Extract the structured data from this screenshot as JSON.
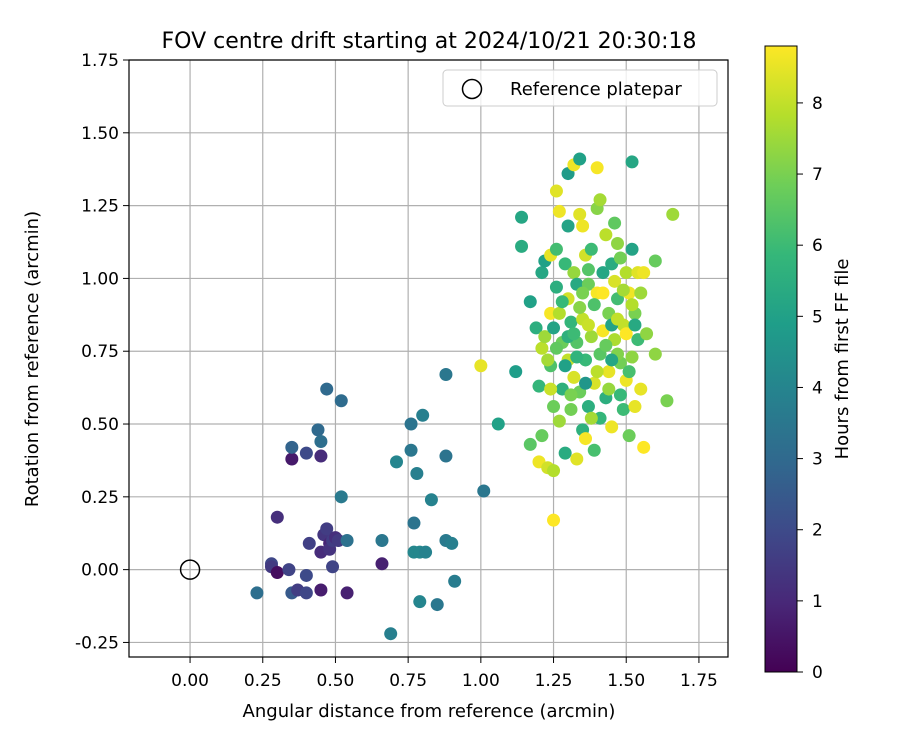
{
  "chart_data": {
    "type": "scatter",
    "title": "FOV centre drift starting at 2024/10/21 20:30:18",
    "xlabel": "Angular distance from reference (arcmin)",
    "ylabel": "Rotation from reference (arcmin)",
    "xlim": [
      -0.21,
      1.85
    ],
    "ylim": [
      -0.3,
      1.75
    ],
    "xticks": [
      "0.00",
      "0.25",
      "0.50",
      "0.75",
      "1.00",
      "1.25",
      "1.50",
      "1.75"
    ],
    "yticks": [
      "-0.25",
      "0.00",
      "0.25",
      "0.50",
      "0.75",
      "1.00",
      "1.25",
      "1.50",
      "1.75"
    ],
    "xtick_values": [
      0,
      0.25,
      0.5,
      0.75,
      1.0,
      1.25,
      1.5,
      1.75
    ],
    "ytick_values": [
      -0.25,
      0,
      0.25,
      0.5,
      0.75,
      1.0,
      1.25,
      1.5,
      1.75
    ],
    "grid": true,
    "legend": {
      "position": "top-right",
      "entries": [
        "Reference platepar"
      ]
    },
    "reference_point": {
      "x": 0.0,
      "y": 0.0,
      "label": "Reference platepar"
    },
    "colorbar": {
      "label": "Hours from first FF file",
      "range": [
        0,
        8.8
      ],
      "ticks": [
        "0",
        "1",
        "2",
        "3",
        "4",
        "5",
        "6",
        "7",
        "8"
      ],
      "colormap": "viridis"
    },
    "points": [
      {
        "x": 0.23,
        "y": -0.08,
        "c": 3.2
      },
      {
        "x": 0.28,
        "y": 0.02,
        "c": 1.9
      },
      {
        "x": 0.28,
        "y": 0.01,
        "c": 1.5
      },
      {
        "x": 0.3,
        "y": 0.18,
        "c": 1.2
      },
      {
        "x": 0.3,
        "y": -0.01,
        "c": 0.3
      },
      {
        "x": 0.34,
        "y": 0.0,
        "c": 1.8
      },
      {
        "x": 0.35,
        "y": -0.08,
        "c": 2.5
      },
      {
        "x": 0.37,
        "y": -0.07,
        "c": 1.6
      },
      {
        "x": 0.4,
        "y": -0.08,
        "c": 1.9
      },
      {
        "x": 0.4,
        "y": -0.02,
        "c": 2.0
      },
      {
        "x": 0.41,
        "y": 0.09,
        "c": 1.7
      },
      {
        "x": 0.45,
        "y": -0.07,
        "c": 0.7
      },
      {
        "x": 0.45,
        "y": 0.06,
        "c": 1.1
      },
      {
        "x": 0.46,
        "y": 0.12,
        "c": 1.4
      },
      {
        "x": 0.47,
        "y": 0.14,
        "c": 1.6
      },
      {
        "x": 0.48,
        "y": 0.09,
        "c": 0.9
      },
      {
        "x": 0.48,
        "y": 0.07,
        "c": 1.3
      },
      {
        "x": 0.49,
        "y": 0.1,
        "c": 1.6
      },
      {
        "x": 0.49,
        "y": 0.01,
        "c": 1.8
      },
      {
        "x": 0.5,
        "y": 0.11,
        "c": 1.2
      },
      {
        "x": 0.51,
        "y": 0.1,
        "c": 1.5
      },
      {
        "x": 0.54,
        "y": -0.08,
        "c": 0.8
      },
      {
        "x": 0.35,
        "y": 0.38,
        "c": 0.6
      },
      {
        "x": 0.35,
        "y": 0.42,
        "c": 2.8
      },
      {
        "x": 0.4,
        "y": 0.4,
        "c": 2.0
      },
      {
        "x": 0.44,
        "y": 0.48,
        "c": 3.0
      },
      {
        "x": 0.45,
        "y": 0.44,
        "c": 3.2
      },
      {
        "x": 0.45,
        "y": 0.39,
        "c": 1.1
      },
      {
        "x": 0.47,
        "y": 0.62,
        "c": 3.0
      },
      {
        "x": 0.52,
        "y": 0.58,
        "c": 3.1
      },
      {
        "x": 0.52,
        "y": 0.25,
        "c": 3.6
      },
      {
        "x": 0.54,
        "y": 0.1,
        "c": 3.3
      },
      {
        "x": 0.66,
        "y": 0.02,
        "c": 0.8
      },
      {
        "x": 0.66,
        "y": 0.1,
        "c": 3.5
      },
      {
        "x": 0.69,
        "y": -0.22,
        "c": 3.8
      },
      {
        "x": 0.71,
        "y": 0.37,
        "c": 4.0
      },
      {
        "x": 0.76,
        "y": 0.41,
        "c": 3.5
      },
      {
        "x": 0.76,
        "y": 0.5,
        "c": 3.4
      },
      {
        "x": 0.77,
        "y": 0.16,
        "c": 3.4
      },
      {
        "x": 0.77,
        "y": 0.06,
        "c": 4.1
      },
      {
        "x": 0.78,
        "y": 0.33,
        "c": 3.8
      },
      {
        "x": 0.79,
        "y": 0.06,
        "c": 4.1
      },
      {
        "x": 0.79,
        "y": -0.11,
        "c": 4.0
      },
      {
        "x": 0.8,
        "y": 0.53,
        "c": 3.8
      },
      {
        "x": 0.81,
        "y": 0.06,
        "c": 3.9
      },
      {
        "x": 0.83,
        "y": 0.24,
        "c": 3.9
      },
      {
        "x": 0.85,
        "y": -0.12,
        "c": 3.5
      },
      {
        "x": 0.88,
        "y": 0.67,
        "c": 3.5
      },
      {
        "x": 0.88,
        "y": 0.39,
        "c": 3.4
      },
      {
        "x": 0.88,
        "y": 0.1,
        "c": 3.6
      },
      {
        "x": 0.9,
        "y": 0.09,
        "c": 3.8
      },
      {
        "x": 0.91,
        "y": -0.04,
        "c": 3.7
      },
      {
        "x": 1.0,
        "y": 0.7,
        "c": 8.5
      },
      {
        "x": 1.01,
        "y": 0.27,
        "c": 3.5
      },
      {
        "x": 1.06,
        "y": 0.5,
        "c": 5.0
      },
      {
        "x": 1.12,
        "y": 0.68,
        "c": 4.9
      },
      {
        "x": 1.14,
        "y": 1.21,
        "c": 5.2
      },
      {
        "x": 1.14,
        "y": 1.11,
        "c": 5.4
      },
      {
        "x": 1.17,
        "y": 0.92,
        "c": 5.0
      },
      {
        "x": 1.17,
        "y": 0.43,
        "c": 6.5
      },
      {
        "x": 1.19,
        "y": 0.83,
        "c": 5.5
      },
      {
        "x": 1.2,
        "y": 0.63,
        "c": 5.8
      },
      {
        "x": 1.2,
        "y": 0.37,
        "c": 8.6
      },
      {
        "x": 1.21,
        "y": 1.02,
        "c": 5.2
      },
      {
        "x": 1.21,
        "y": 0.76,
        "c": 7.9
      },
      {
        "x": 1.21,
        "y": 0.46,
        "c": 6.7
      },
      {
        "x": 1.22,
        "y": 1.06,
        "c": 5.0
      },
      {
        "x": 1.22,
        "y": 0.8,
        "c": 7.5
      },
      {
        "x": 1.23,
        "y": 0.35,
        "c": 8.2
      },
      {
        "x": 1.24,
        "y": 1.08,
        "c": 8.5
      },
      {
        "x": 1.24,
        "y": 0.88,
        "c": 8.7
      },
      {
        "x": 1.24,
        "y": 0.7,
        "c": 6.3
      },
      {
        "x": 1.25,
        "y": 0.17,
        "c": 8.8
      },
      {
        "x": 1.25,
        "y": 0.56,
        "c": 6.8
      },
      {
        "x": 1.25,
        "y": 0.34,
        "c": 7.8
      },
      {
        "x": 1.26,
        "y": 1.3,
        "c": 8.4
      },
      {
        "x": 1.26,
        "y": 1.1,
        "c": 6.1
      },
      {
        "x": 1.26,
        "y": 0.97,
        "c": 5.5
      },
      {
        "x": 1.27,
        "y": 1.23,
        "c": 8.6
      },
      {
        "x": 1.27,
        "y": 0.51,
        "c": 7.5
      },
      {
        "x": 1.28,
        "y": 0.78,
        "c": 6.8
      },
      {
        "x": 1.28,
        "y": 0.62,
        "c": 5.6
      },
      {
        "x": 1.29,
        "y": 1.05,
        "c": 5.9
      },
      {
        "x": 1.29,
        "y": 0.4,
        "c": 5.4
      },
      {
        "x": 1.3,
        "y": 1.36,
        "c": 4.8
      },
      {
        "x": 1.3,
        "y": 1.18,
        "c": 5.1
      },
      {
        "x": 1.3,
        "y": 0.93,
        "c": 8.2
      },
      {
        "x": 1.3,
        "y": 0.72,
        "c": 8.0
      },
      {
        "x": 1.31,
        "y": 0.85,
        "c": 5.8
      },
      {
        "x": 1.31,
        "y": 0.55,
        "c": 6.9
      },
      {
        "x": 1.32,
        "y": 1.39,
        "c": 8.6
      },
      {
        "x": 1.32,
        "y": 1.02,
        "c": 7.4
      },
      {
        "x": 1.32,
        "y": 0.66,
        "c": 8.3
      },
      {
        "x": 1.33,
        "y": 0.38,
        "c": 8.4
      },
      {
        "x": 1.33,
        "y": 0.98,
        "c": 5.3
      },
      {
        "x": 1.33,
        "y": 0.78,
        "c": 6.4
      },
      {
        "x": 1.34,
        "y": 1.41,
        "c": 5.0
      },
      {
        "x": 1.34,
        "y": 1.22,
        "c": 8.4
      },
      {
        "x": 1.34,
        "y": 0.61,
        "c": 6.8
      },
      {
        "x": 1.35,
        "y": 1.18,
        "c": 8.6
      },
      {
        "x": 1.35,
        "y": 0.48,
        "c": 5.6
      },
      {
        "x": 1.35,
        "y": 0.86,
        "c": 8.0
      },
      {
        "x": 1.36,
        "y": 1.08,
        "c": 8.2
      },
      {
        "x": 1.36,
        "y": 0.72,
        "c": 5.9
      },
      {
        "x": 1.36,
        "y": 0.45,
        "c": 8.7
      },
      {
        "x": 1.37,
        "y": 0.98,
        "c": 6.8
      },
      {
        "x": 1.37,
        "y": 0.56,
        "c": 5.5
      },
      {
        "x": 1.38,
        "y": 1.1,
        "c": 6.0
      },
      {
        "x": 1.38,
        "y": 0.8,
        "c": 7.5
      },
      {
        "x": 1.39,
        "y": 0.64,
        "c": 8.3
      },
      {
        "x": 1.39,
        "y": 0.41,
        "c": 6.2
      },
      {
        "x": 1.4,
        "y": 1.38,
        "c": 8.7
      },
      {
        "x": 1.4,
        "y": 1.24,
        "c": 7.2
      },
      {
        "x": 1.4,
        "y": 0.95,
        "c": 8.7
      },
      {
        "x": 1.41,
        "y": 1.27,
        "c": 7.6
      },
      {
        "x": 1.41,
        "y": 0.74,
        "c": 6.5
      },
      {
        "x": 1.41,
        "y": 0.52,
        "c": 5.8
      },
      {
        "x": 1.42,
        "y": 0.82,
        "c": 8.7
      },
      {
        "x": 1.42,
        "y": 1.02,
        "c": 5.2
      },
      {
        "x": 1.43,
        "y": 0.59,
        "c": 5.5
      },
      {
        "x": 1.44,
        "y": 0.88,
        "c": 7.0
      },
      {
        "x": 1.44,
        "y": 0.68,
        "c": 8.5
      },
      {
        "x": 1.45,
        "y": 1.05,
        "c": 5.4
      },
      {
        "x": 1.45,
        "y": 0.49,
        "c": 8.6
      },
      {
        "x": 1.46,
        "y": 1.19,
        "c": 6.6
      },
      {
        "x": 1.46,
        "y": 0.79,
        "c": 7.7
      },
      {
        "x": 1.47,
        "y": 1.12,
        "c": 7.3
      },
      {
        "x": 1.47,
        "y": 0.93,
        "c": 6.1
      },
      {
        "x": 1.48,
        "y": 0.71,
        "c": 6.9
      },
      {
        "x": 1.49,
        "y": 0.84,
        "c": 8.0
      },
      {
        "x": 1.49,
        "y": 0.55,
        "c": 6.0
      },
      {
        "x": 1.5,
        "y": 1.02,
        "c": 7.8
      },
      {
        "x": 1.5,
        "y": 0.65,
        "c": 8.6
      },
      {
        "x": 1.51,
        "y": 0.95,
        "c": 8.6
      },
      {
        "x": 1.51,
        "y": 0.46,
        "c": 6.8
      },
      {
        "x": 1.52,
        "y": 1.4,
        "c": 5.2
      },
      {
        "x": 1.52,
        "y": 1.1,
        "c": 5.1
      },
      {
        "x": 1.52,
        "y": 0.73,
        "c": 7.3
      },
      {
        "x": 1.53,
        "y": 0.88,
        "c": 7.0
      },
      {
        "x": 1.53,
        "y": 0.56,
        "c": 8.5
      },
      {
        "x": 1.54,
        "y": 1.02,
        "c": 8.4
      },
      {
        "x": 1.54,
        "y": 0.79,
        "c": 6.0
      },
      {
        "x": 1.55,
        "y": 0.95,
        "c": 7.5
      },
      {
        "x": 1.55,
        "y": 0.62,
        "c": 8.5
      },
      {
        "x": 1.56,
        "y": 1.02,
        "c": 8.6
      },
      {
        "x": 1.56,
        "y": 0.42,
        "c": 8.8
      },
      {
        "x": 1.57,
        "y": 0.81,
        "c": 7.3
      },
      {
        "x": 1.6,
        "y": 1.06,
        "c": 6.7
      },
      {
        "x": 1.6,
        "y": 0.74,
        "c": 7.3
      },
      {
        "x": 1.64,
        "y": 0.58,
        "c": 7.0
      },
      {
        "x": 1.66,
        "y": 1.22,
        "c": 7.5
      },
      {
        "x": 1.27,
        "y": 0.88,
        "c": 7.8
      },
      {
        "x": 1.29,
        "y": 0.7,
        "c": 5.0
      },
      {
        "x": 1.31,
        "y": 0.6,
        "c": 7.0
      },
      {
        "x": 1.33,
        "y": 0.73,
        "c": 5.7
      },
      {
        "x": 1.34,
        "y": 0.9,
        "c": 7.2
      },
      {
        "x": 1.36,
        "y": 0.64,
        "c": 4.6
      },
      {
        "x": 1.37,
        "y": 0.84,
        "c": 8.1
      },
      {
        "x": 1.38,
        "y": 0.52,
        "c": 7.6
      },
      {
        "x": 1.39,
        "y": 0.91,
        "c": 6.3
      },
      {
        "x": 1.4,
        "y": 0.68,
        "c": 7.9
      },
      {
        "x": 1.42,
        "y": 0.95,
        "c": 8.8
      },
      {
        "x": 1.43,
        "y": 0.77,
        "c": 6.7
      },
      {
        "x": 1.44,
        "y": 0.62,
        "c": 7.4
      },
      {
        "x": 1.45,
        "y": 0.84,
        "c": 5.1
      },
      {
        "x": 1.46,
        "y": 0.99,
        "c": 8.3
      },
      {
        "x": 1.47,
        "y": 0.74,
        "c": 7.1
      },
      {
        "x": 1.48,
        "y": 0.6,
        "c": 5.9
      },
      {
        "x": 1.49,
        "y": 0.96,
        "c": 7.6
      },
      {
        "x": 1.5,
        "y": 0.81,
        "c": 8.8
      },
      {
        "x": 1.51,
        "y": 0.68,
        "c": 6.2
      },
      {
        "x": 1.52,
        "y": 0.91,
        "c": 7.8
      },
      {
        "x": 1.53,
        "y": 0.84,
        "c": 5.3
      },
      {
        "x": 1.3,
        "y": 0.8,
        "c": 5.6
      },
      {
        "x": 1.32,
        "y": 0.81,
        "c": 6.0
      },
      {
        "x": 1.35,
        "y": 0.95,
        "c": 7.0
      },
      {
        "x": 1.37,
        "y": 1.03,
        "c": 6.4
      },
      {
        "x": 1.28,
        "y": 0.92,
        "c": 5.9
      },
      {
        "x": 1.26,
        "y": 0.76,
        "c": 6.6
      },
      {
        "x": 1.23,
        "y": 0.72,
        "c": 7.6
      },
      {
        "x": 1.24,
        "y": 0.62,
        "c": 8.1
      },
      {
        "x": 1.25,
        "y": 0.83,
        "c": 5.1
      },
      {
        "x": 1.43,
        "y": 1.15,
        "c": 7.9
      },
      {
        "x": 1.45,
        "y": 0.72,
        "c": 5.2
      },
      {
        "x": 1.47,
        "y": 0.86,
        "c": 8.0
      },
      {
        "x": 1.48,
        "y": 1.07,
        "c": 6.9
      }
    ]
  }
}
